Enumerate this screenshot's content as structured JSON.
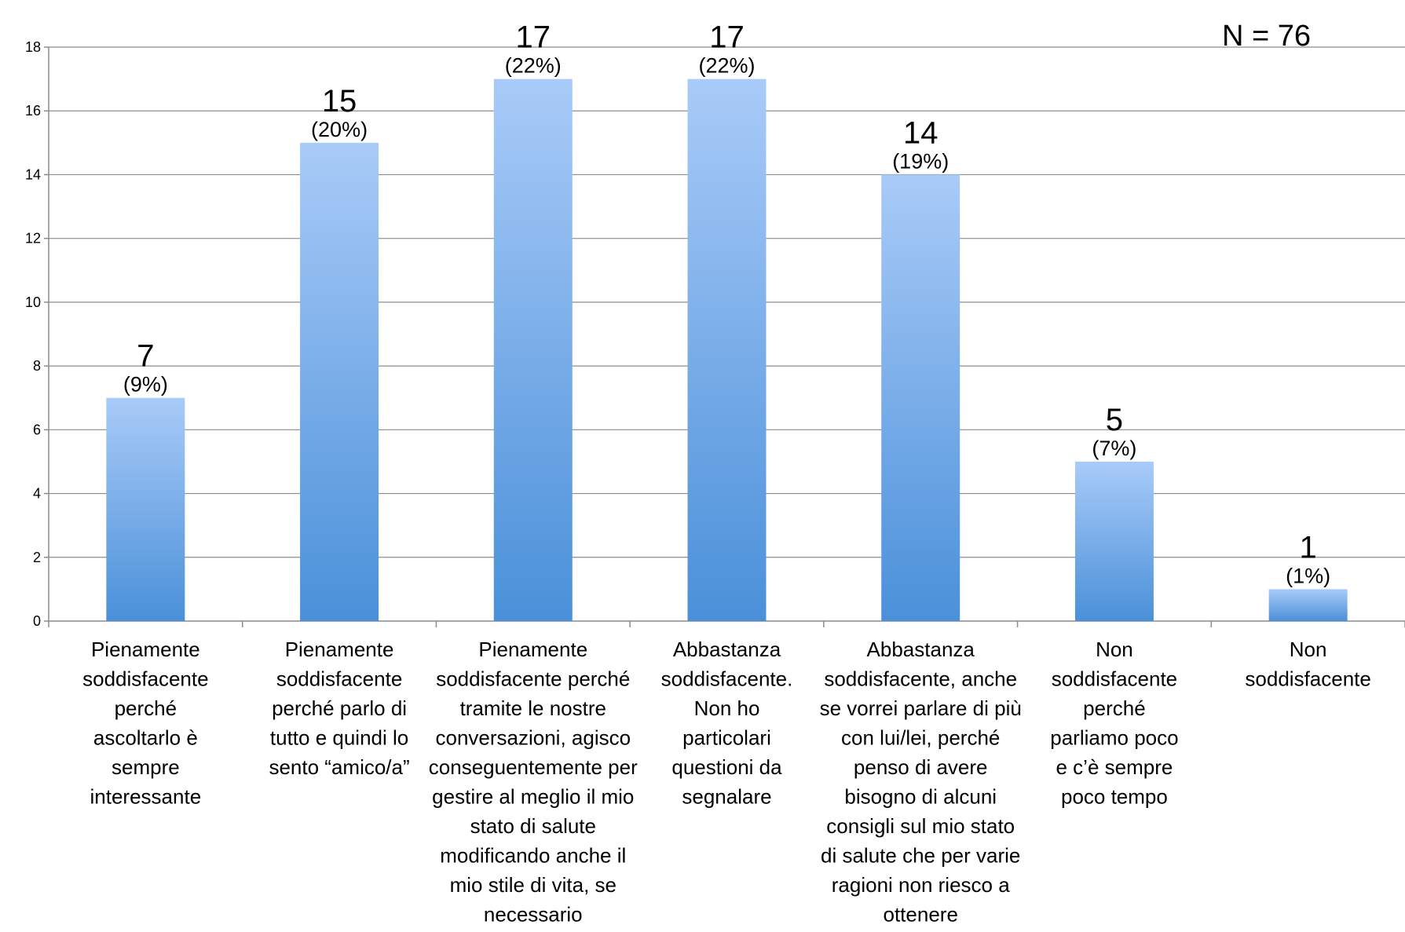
{
  "chart_data": {
    "type": "bar",
    "categories": [
      [
        "Pienamente",
        "soddisfacente",
        "perché",
        "ascoltarlo è",
        "sempre",
        "interessante"
      ],
      [
        "Pienamente",
        "soddisfacente",
        "perché parlo di",
        "tutto e quindi lo",
        "sento “amico/a”"
      ],
      [
        "Pienamente",
        "soddisfacente perché",
        "tramite le nostre",
        "conversazioni, agisco",
        "conseguentemente per",
        "gestire al meglio il mio",
        "stato di salute",
        "modificando anche il",
        "mio stile di vita, se",
        "necessario"
      ],
      [
        "Abbastanza",
        "soddisfacente.",
        "Non ho",
        "particolari",
        "questioni da",
        "segnalare"
      ],
      [
        "Abbastanza",
        "soddisfacente, anche",
        "se vorrei parlare di più",
        "con lui/lei, perché",
        "penso di avere",
        "bisogno di alcuni",
        "consigli sul mio stato",
        "di salute che per varie",
        "ragioni non riesco a",
        "ottenere"
      ],
      [
        "Non",
        "soddisfacente",
        "perché",
        "parliamo poco",
        "e c’è sempre",
        "poco tempo"
      ],
      [
        "Non",
        "soddisfacente"
      ]
    ],
    "values": [
      7,
      15,
      17,
      17,
      14,
      5,
      1
    ],
    "value_labels": [
      "7",
      "15",
      "17",
      "17",
      "14",
      "5",
      "1"
    ],
    "percent_labels": [
      "(9%)",
      "(20%)",
      "(22%)",
      "(22%)",
      "(19%)",
      "(7%)",
      "(1%)"
    ],
    "ylim": [
      0,
      18
    ],
    "yticks": [
      "0",
      "2",
      "4",
      "6",
      "8",
      "10",
      "12",
      "14",
      "16",
      "18"
    ],
    "ytick_values": [
      0,
      2,
      4,
      6,
      8,
      10,
      12,
      14,
      16,
      18
    ],
    "grid": true,
    "annotation": "N = 76",
    "colors": {
      "bar_top": "#a9cbf8",
      "bar_bottom": "#4a90d9",
      "grid": "#8c8c8c",
      "axis": "#8c8c8c"
    }
  }
}
